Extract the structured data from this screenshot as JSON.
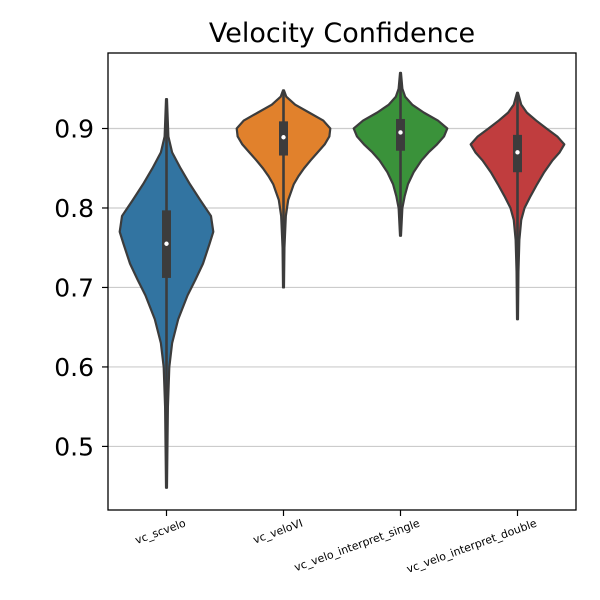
{
  "chart_data": {
    "type": "violin",
    "title": "Velocity Confidence",
    "xlabel": "",
    "ylabel": "",
    "ylim": [
      0.42,
      0.995
    ],
    "yticks": [
      0.5,
      0.6,
      0.7,
      0.8,
      0.9
    ],
    "ytick_labels": [
      "0.5",
      "0.6",
      "0.7",
      "0.8",
      "0.9"
    ],
    "grid": "horizontal",
    "categories": [
      "vc_scvelo",
      "vc_veloVI",
      "vc_velo_interpret_single",
      "vc_velo_interpret_double"
    ],
    "series": [
      {
        "category": "vc_scvelo",
        "color": "#3274a1",
        "min": 0.448,
        "q1": 0.712,
        "median": 0.755,
        "q3": 0.797,
        "max": 0.937,
        "density": [
          [
            0.448,
            0.01
          ],
          [
            0.5,
            0.02
          ],
          [
            0.55,
            0.03
          ],
          [
            0.6,
            0.06
          ],
          [
            0.63,
            0.12
          ],
          [
            0.66,
            0.25
          ],
          [
            0.69,
            0.45
          ],
          [
            0.71,
            0.62
          ],
          [
            0.73,
            0.78
          ],
          [
            0.755,
            0.92
          ],
          [
            0.77,
            1.0
          ],
          [
            0.79,
            0.95
          ],
          [
            0.81,
            0.72
          ],
          [
            0.83,
            0.5
          ],
          [
            0.85,
            0.3
          ],
          [
            0.87,
            0.12
          ],
          [
            0.89,
            0.04
          ],
          [
            0.937,
            0.01
          ]
        ]
      },
      {
        "category": "vc_veloVI",
        "color": "#e1812c",
        "min": 0.7,
        "q1": 0.866,
        "median": 0.889,
        "q3": 0.909,
        "max": 0.948,
        "density": [
          [
            0.7,
            0.01
          ],
          [
            0.75,
            0.02
          ],
          [
            0.79,
            0.05
          ],
          [
            0.81,
            0.1
          ],
          [
            0.82,
            0.16
          ],
          [
            0.83,
            0.22
          ],
          [
            0.84,
            0.32
          ],
          [
            0.85,
            0.44
          ],
          [
            0.86,
            0.58
          ],
          [
            0.87,
            0.73
          ],
          [
            0.88,
            0.88
          ],
          [
            0.89,
            0.98
          ],
          [
            0.9,
            1.0
          ],
          [
            0.91,
            0.85
          ],
          [
            0.92,
            0.55
          ],
          [
            0.93,
            0.25
          ],
          [
            0.94,
            0.06
          ],
          [
            0.948,
            0.01
          ]
        ]
      },
      {
        "category": "vc_velo_interpret_single",
        "color": "#3a923a",
        "min": 0.765,
        "q1": 0.872,
        "median": 0.895,
        "q3": 0.912,
        "max": 0.97,
        "density": [
          [
            0.765,
            0.01
          ],
          [
            0.8,
            0.04
          ],
          [
            0.815,
            0.09
          ],
          [
            0.83,
            0.16
          ],
          [
            0.845,
            0.28
          ],
          [
            0.86,
            0.45
          ],
          [
            0.87,
            0.6
          ],
          [
            0.88,
            0.78
          ],
          [
            0.89,
            0.93
          ],
          [
            0.9,
            1.0
          ],
          [
            0.91,
            0.8
          ],
          [
            0.92,
            0.5
          ],
          [
            0.93,
            0.25
          ],
          [
            0.94,
            0.1
          ],
          [
            0.95,
            0.04
          ],
          [
            0.97,
            0.01
          ]
        ]
      },
      {
        "category": "vc_velo_interpret_double",
        "color": "#c03d3e",
        "min": 0.66,
        "q1": 0.845,
        "median": 0.87,
        "q3": 0.892,
        "max": 0.945,
        "density": [
          [
            0.66,
            0.01
          ],
          [
            0.72,
            0.02
          ],
          [
            0.76,
            0.04
          ],
          [
            0.785,
            0.08
          ],
          [
            0.8,
            0.15
          ],
          [
            0.815,
            0.28
          ],
          [
            0.83,
            0.42
          ],
          [
            0.845,
            0.57
          ],
          [
            0.86,
            0.75
          ],
          [
            0.87,
            0.9
          ],
          [
            0.88,
            1.0
          ],
          [
            0.89,
            0.85
          ],
          [
            0.9,
            0.62
          ],
          [
            0.91,
            0.4
          ],
          [
            0.92,
            0.2
          ],
          [
            0.93,
            0.08
          ],
          [
            0.945,
            0.01
          ]
        ]
      }
    ]
  }
}
